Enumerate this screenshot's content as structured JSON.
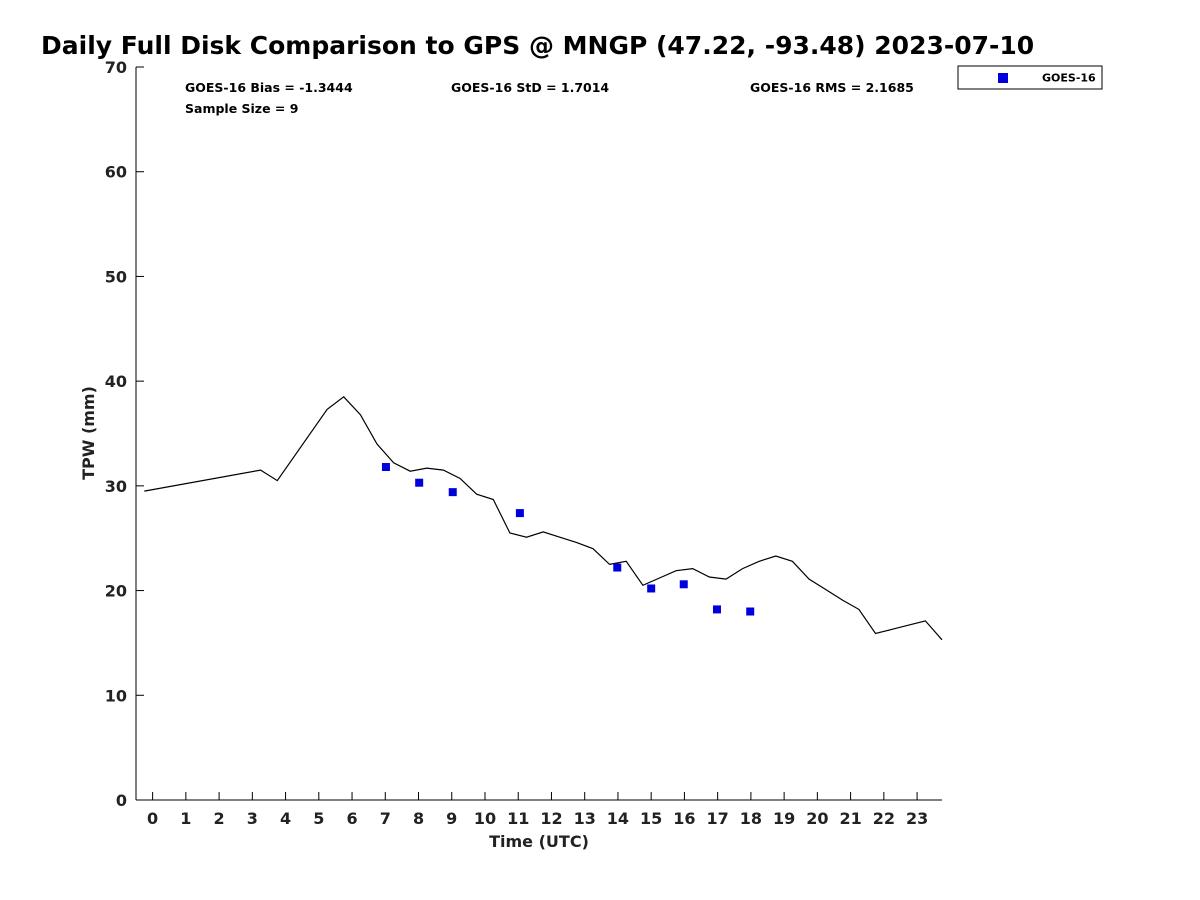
{
  "chart_data": {
    "type": "scatter",
    "title": "Daily Full Disk Comparison to GPS @ MNGP (47.22, -93.48) 2023-07-10",
    "xlabel": "Time (UTC)",
    "ylabel": "TPW (mm)",
    "xlim": [
      -0.5,
      23.75
    ],
    "ylim": [
      0,
      70
    ],
    "x_ticks": [
      0,
      1,
      2,
      3,
      4,
      5,
      6,
      7,
      8,
      9,
      10,
      11,
      12,
      13,
      14,
      15,
      16,
      17,
      18,
      19,
      20,
      21,
      22,
      23
    ],
    "y_ticks": [
      0,
      10,
      20,
      30,
      40,
      50,
      60,
      70
    ],
    "grid": false,
    "legend_position": "top-right, outside plot",
    "stats": {
      "bias": "GOES-16 Bias = -1.3444",
      "std": "GOES-16 StD = 1.7014",
      "rms": "GOES-16 RMS = 2.1685",
      "sample": "Sample Size = 9"
    },
    "series": [
      {
        "name": "GOES-16",
        "kind": "scatter",
        "marker": "square",
        "color": "#0000dd",
        "points": [
          [
            7.02,
            31.8
          ],
          [
            8.02,
            30.3
          ],
          [
            9.03,
            29.4
          ],
          [
            11.05,
            27.4
          ],
          [
            13.98,
            22.2
          ],
          [
            15.0,
            20.2
          ],
          [
            15.98,
            20.6
          ],
          [
            16.98,
            18.2
          ],
          [
            17.98,
            18.0
          ]
        ]
      },
      {
        "kind": "line",
        "color": "#000000",
        "points": [
          [
            -0.25,
            29.5
          ],
          [
            3.25,
            31.5
          ],
          [
            3.75,
            30.5
          ],
          [
            5.25,
            37.3
          ],
          [
            5.75,
            38.5
          ],
          [
            6.25,
            36.8
          ],
          [
            6.75,
            34.0
          ],
          [
            7.25,
            32.2
          ],
          [
            7.75,
            31.4
          ],
          [
            8.25,
            31.7
          ],
          [
            8.75,
            31.5
          ],
          [
            9.25,
            30.7
          ],
          [
            9.75,
            29.2
          ],
          [
            10.25,
            28.7
          ],
          [
            10.75,
            25.5
          ],
          [
            11.25,
            25.1
          ],
          [
            11.75,
            25.6
          ],
          [
            12.25,
            25.1
          ],
          [
            12.75,
            24.6
          ],
          [
            13.25,
            24.0
          ],
          [
            13.75,
            22.5
          ],
          [
            14.25,
            22.8
          ],
          [
            14.75,
            20.5
          ],
          [
            15.25,
            21.2
          ],
          [
            15.75,
            21.9
          ],
          [
            16.25,
            22.1
          ],
          [
            16.75,
            21.3
          ],
          [
            17.25,
            21.1
          ],
          [
            17.75,
            22.1
          ],
          [
            18.25,
            22.8
          ],
          [
            18.75,
            23.3
          ],
          [
            19.25,
            22.8
          ],
          [
            19.75,
            21.1
          ],
          [
            20.25,
            20.1
          ],
          [
            20.75,
            19.1
          ],
          [
            21.25,
            18.2
          ],
          [
            21.75,
            15.9
          ],
          [
            22.25,
            16.3
          ],
          [
            22.75,
            16.7
          ],
          [
            23.25,
            17.1
          ],
          [
            23.75,
            15.3
          ]
        ]
      }
    ]
  }
}
